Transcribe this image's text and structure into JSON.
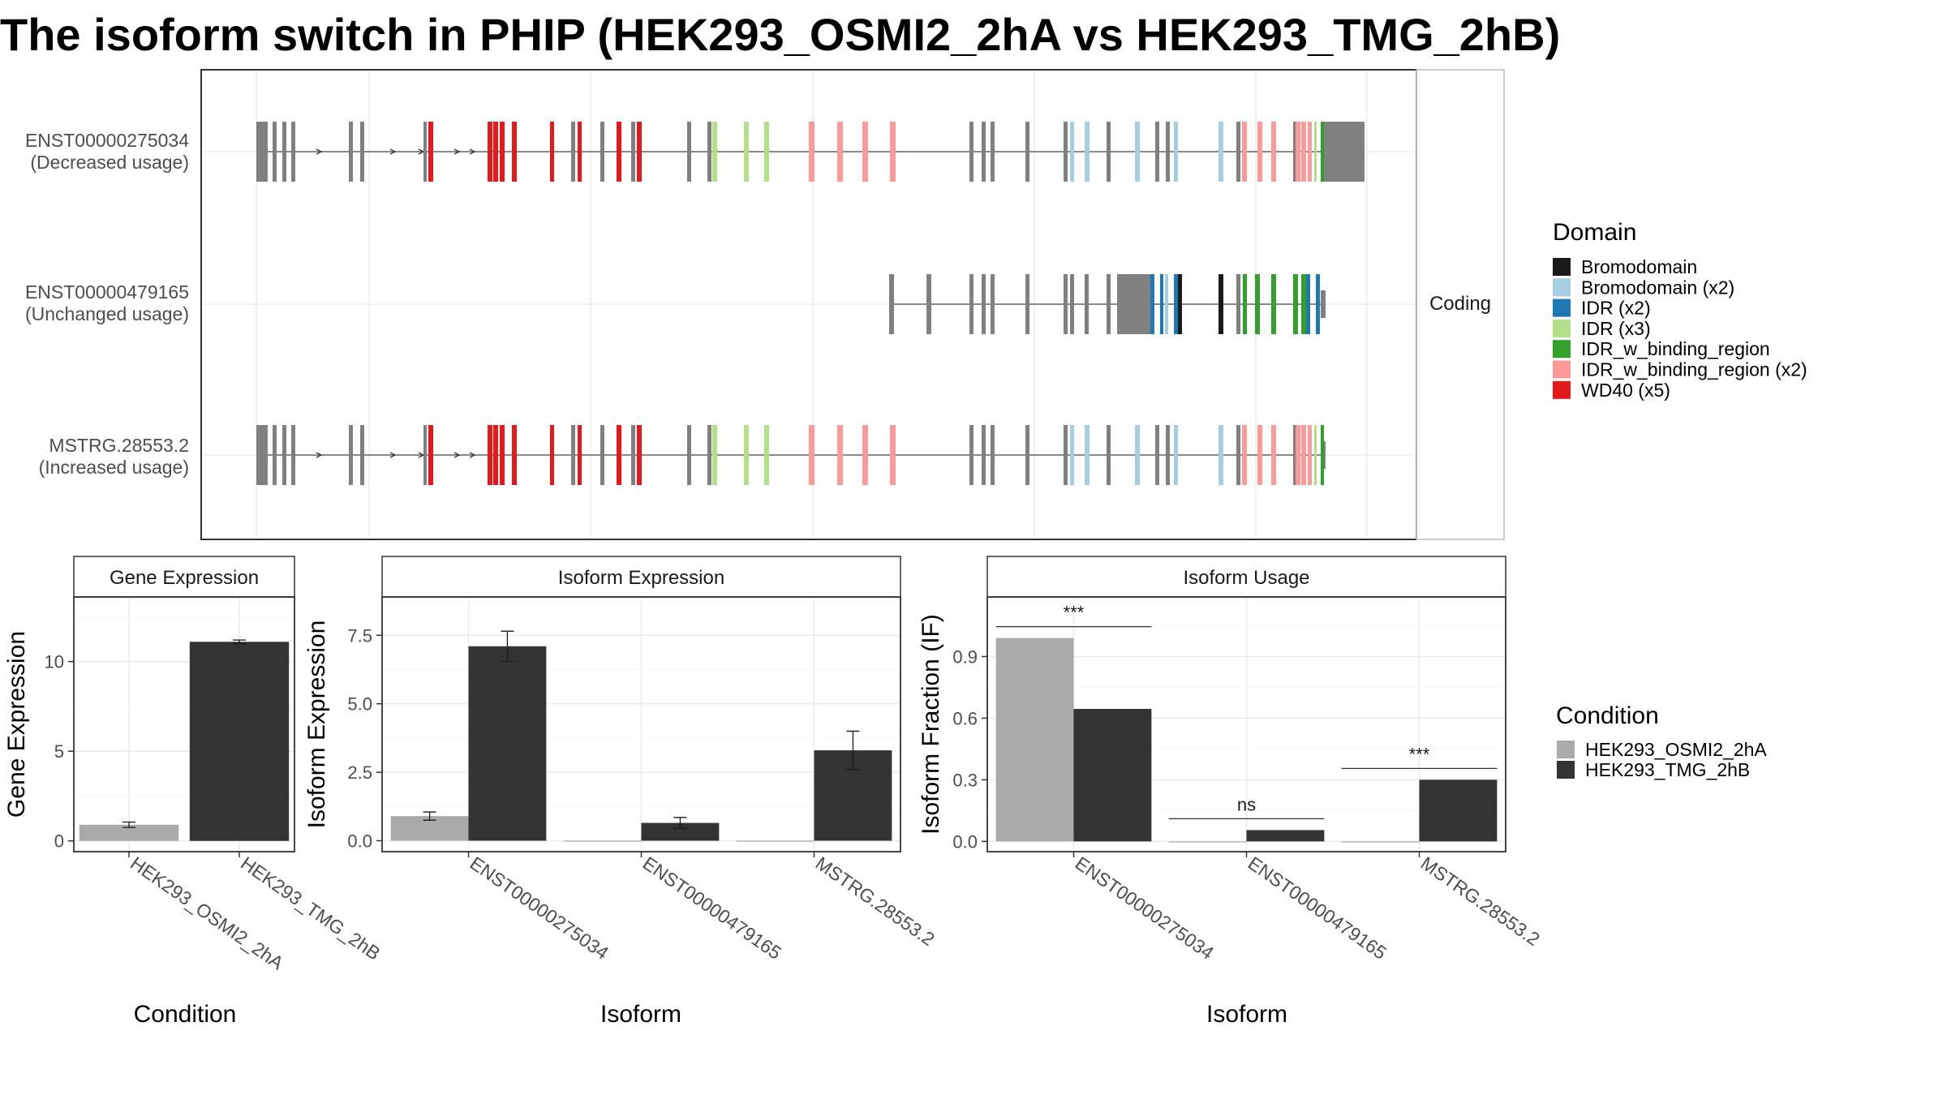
{
  "title": "The isoform switch in PHIP (HEK293_OSMI2_2hA vs HEK293_TMG_2hB)",
  "colors": {
    "condition_a": "#aaaaaa",
    "condition_b": "#333333",
    "exon": "#808080",
    "Bromodomain": "#1a1a1a",
    "Bromodomain (x2)": "#a6cee3",
    "IDR (x2)": "#1f78b4",
    "IDR (x3)": "#b2df8a",
    "IDR_w_binding_region": "#33a02c",
    "IDR_w_binding_region (x2)": "#fb9a99",
    "WD40 (x5)": "#e31a1c"
  },
  "structure": {
    "facet_label": "Coding",
    "tracks": [
      {
        "id": "ENST00000275034",
        "usage": "(Decreased usage)"
      },
      {
        "id": "ENST00000479165",
        "usage": "(Unchanged usage)"
      },
      {
        "id": "MSTRG.28553.2",
        "usage": "(Increased usage)"
      }
    ]
  },
  "legend_domain": {
    "title": "Domain",
    "items": [
      "Bromodomain",
      "Bromodomain (x2)",
      "IDR (x2)",
      "IDR (x3)",
      "IDR_w_binding_region",
      "IDR_w_binding_region (x2)",
      "WD40 (x5)"
    ]
  },
  "legend_condition": {
    "title": "Condition",
    "items": [
      "HEK293_OSMI2_2hA",
      "HEK293_TMG_2hB"
    ]
  },
  "chart_data": [
    {
      "type": "bar",
      "panel_title": "Gene Expression",
      "xlabel": "Condition",
      "ylabel": "Gene Expression",
      "categories": [
        "HEK293_OSMI2_2hA",
        "HEK293_TMG_2hB"
      ],
      "values": [
        0.9,
        11.1
      ],
      "errors": [
        0.15,
        0.1
      ],
      "yticks": [
        0,
        5,
        10
      ],
      "ylim": [
        -0.6,
        13.6
      ],
      "grid": true
    },
    {
      "type": "bar",
      "panel_title": "Isoform Expression",
      "xlabel": "Isoform",
      "ylabel": "Isoform Expression",
      "categories": [
        "ENST00000275034",
        "ENST00000479165",
        "MSTRG.28553.2"
      ],
      "series": [
        {
          "name": "HEK293_OSMI2_2hA",
          "values": [
            0.9,
            0.0,
            0.0
          ],
          "errors": [
            0.15,
            0,
            0
          ]
        },
        {
          "name": "HEK293_TMG_2hB",
          "values": [
            7.1,
            0.65,
            3.3
          ],
          "errors": [
            0.55,
            0.2,
            0.7
          ]
        }
      ],
      "yticks": [
        0.0,
        2.5,
        5.0,
        7.5
      ],
      "ylim": [
        -0.4,
        8.9
      ],
      "grid": true
    },
    {
      "type": "bar",
      "panel_title": "Isoform Usage",
      "xlabel": "Isoform",
      "ylabel": "Isoform Fraction (IF)",
      "categories": [
        "ENST00000275034",
        "ENST00000479165",
        "MSTRG.28553.2"
      ],
      "series": [
        {
          "name": "HEK293_OSMI2_2hA",
          "values": [
            0.99,
            0.0,
            0.0
          ]
        },
        {
          "name": "HEK293_TMG_2hB",
          "values": [
            0.645,
            0.055,
            0.3
          ]
        }
      ],
      "significance": [
        "***",
        "ns",
        "***"
      ],
      "yticks": [
        0.0,
        0.3,
        0.6,
        0.9
      ],
      "ylim": [
        -0.05,
        1.19
      ],
      "grid": true
    }
  ]
}
